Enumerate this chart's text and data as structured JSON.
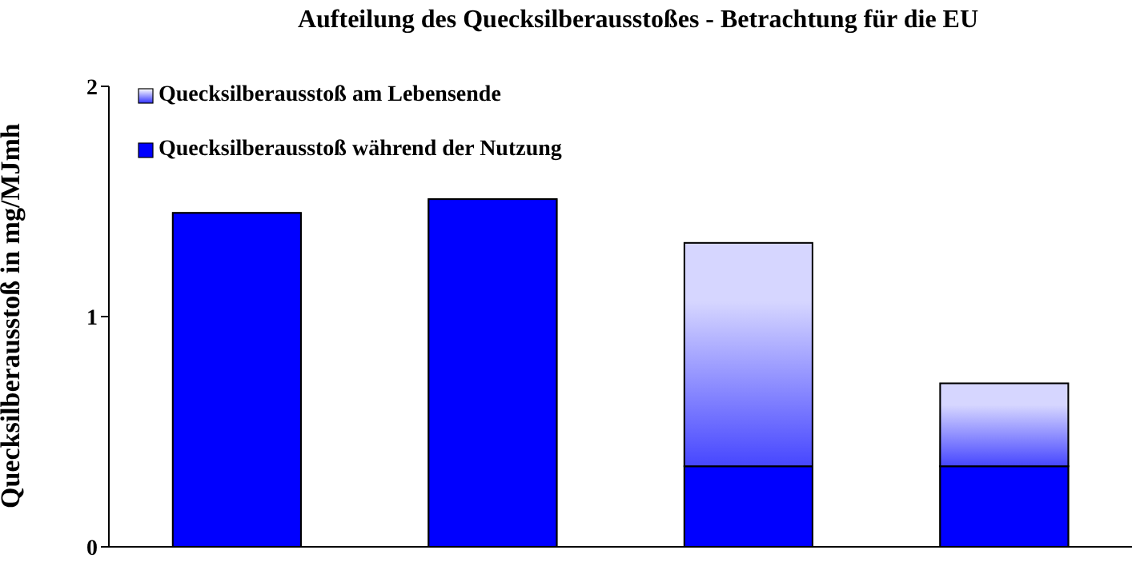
{
  "chart_data": {
    "type": "bar",
    "title": "Aufteilung des Quecksilberausstoßes  -  Betrachtung für die EU",
    "ylabel": "Quecksilberausstoß in mg/MJmh",
    "categories": [
      null,
      null,
      null,
      null
    ],
    "stacked": true,
    "series": [
      {
        "name": "Quecksilberausstoß während der Nutzung",
        "color": "#0000ff",
        "values": [
          1.45,
          1.51,
          0.35,
          0.35
        ]
      },
      {
        "name": "Quecksilberausstoß am Lebensende",
        "color": "#3333ff",
        "values": [
          null,
          null,
          0.97,
          0.36
        ]
      }
    ],
    "ylim": [
      0,
      2
    ],
    "yticks": [
      0,
      1,
      2
    ],
    "legend": "top left",
    "tick_labels": "y"
  }
}
